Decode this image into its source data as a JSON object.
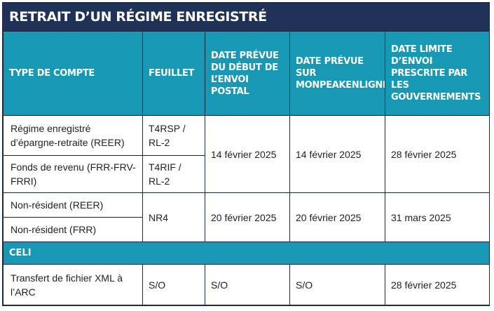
{
  "title": "RETRAIT D’UN RÉGIME ENREGISTRÉ",
  "headers": {
    "col1": "TYPE DE COMPTE",
    "col2": "FEUILLET",
    "col3": "DATE PRÉVUE DU DÉBUT DE L’ENVOI POSTAL",
    "col4": "DATE PRÉVUE SUR MONPEAKENLIGNE",
    "col5": "DATE LIMITE D’ENVOI PRESCRITE PAR LES GOUVERNEMENTS"
  },
  "rows": {
    "reer": {
      "account": "Régime enregistré d’épargne-retraite (REER)",
      "slip": "T4RSP / RL-2"
    },
    "frr": {
      "account": "Fonds de revenu (FRR-FRV-FRRI)",
      "slip": "T4RIF / RL-2"
    },
    "group1": {
      "mail_date": "14 février 2025",
      "online_date": "14 février 2025",
      "deadline": "28 février 2025"
    },
    "nr_reer": {
      "account": "Non-résident (REER)"
    },
    "nr_frr": {
      "account": "Non-résident (FRR)"
    },
    "group2": {
      "slip": "NR4",
      "mail_date": "20 février 2025",
      "online_date": "20 février 2025",
      "deadline": "31 mars 2025"
    },
    "celi_section": "CELI",
    "xml": {
      "account": "Transfert de fichier XML à l’ARC",
      "slip": "S/O",
      "mail_date": "S/O",
      "online_date": "S/O",
      "deadline": "28 février 2025"
    }
  }
}
